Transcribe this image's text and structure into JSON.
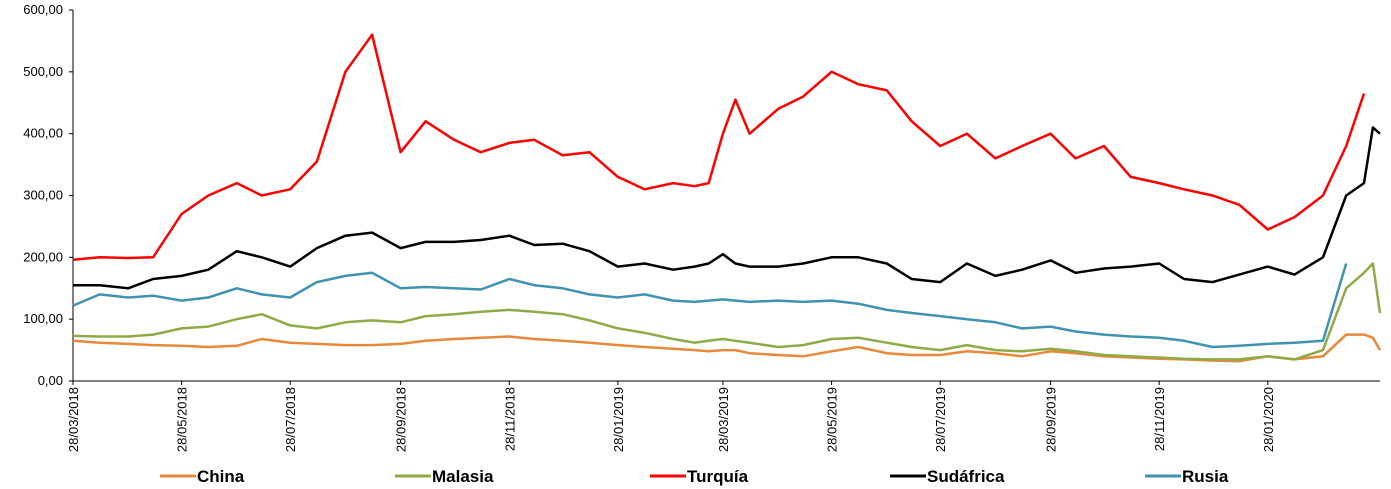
{
  "chart_data": {
    "type": "line",
    "x": [
      "28/03/2018",
      "12/04/2018",
      "28/04/2018",
      "12/05/2018",
      "28/05/2018",
      "12/06/2018",
      "28/06/2018",
      "12/07/2018",
      "28/07/2018",
      "12/08/2018",
      "28/08/2018",
      "12/09/2018",
      "28/09/2018",
      "12/10/2018",
      "28/10/2018",
      "12/11/2018",
      "28/11/2018",
      "12/12/2018",
      "28/12/2018",
      "12/01/2019",
      "28/01/2019",
      "12/02/2019",
      "28/02/2019",
      "12/03/2019",
      "20/03/2019",
      "28/03/2019",
      "04/04/2019",
      "12/04/2019",
      "28/04/2019",
      "12/05/2019",
      "28/05/2019",
      "12/06/2019",
      "28/06/2019",
      "12/07/2019",
      "28/07/2019",
      "12/08/2019",
      "28/08/2019",
      "12/09/2019",
      "28/09/2019",
      "12/10/2019",
      "28/10/2019",
      "12/11/2019",
      "28/11/2019",
      "12/12/2019",
      "28/12/2019",
      "12/01/2020",
      "28/01/2020",
      "12/02/2020",
      "28/02/2020",
      "12/03/2020",
      "22/03/2020",
      "27/03/2020",
      "31/03/2020"
    ],
    "series": [
      {
        "name": "China",
        "color": "#e8883a",
        "values": [
          65,
          62,
          60,
          58,
          57,
          55,
          57,
          68,
          62,
          60,
          58,
          58,
          60,
          65,
          68,
          70,
          72,
          68,
          65,
          62,
          58,
          55,
          52,
          50,
          48,
          50,
          50,
          45,
          42,
          40,
          48,
          55,
          45,
          42,
          42,
          48,
          45,
          40,
          48,
          45,
          40,
          38,
          36,
          35,
          33,
          32,
          40,
          35,
          40,
          75,
          75,
          70,
          50
        ]
      },
      {
        "name": "Malasia",
        "color": "#8faa46",
        "values": [
          73,
          72,
          72,
          75,
          85,
          88,
          100,
          108,
          90,
          85,
          95,
          98,
          95,
          105,
          108,
          112,
          115,
          112,
          108,
          98,
          85,
          78,
          68,
          62,
          65,
          68,
          65,
          62,
          55,
          58,
          68,
          70,
          62,
          55,
          50,
          58,
          50,
          48,
          52,
          48,
          42,
          40,
          38,
          36,
          35,
          35,
          40,
          35,
          50,
          150,
          175,
          190,
          110
        ]
      },
      {
        "name": "Turquía",
        "color": "#ff0000",
        "values": [
          196,
          200,
          199,
          200,
          270,
          300,
          320,
          300,
          310,
          355,
          500,
          560,
          370,
          420,
          390,
          370,
          385,
          390,
          365,
          370,
          330,
          310,
          320,
          315,
          320,
          400,
          455,
          400,
          440,
          460,
          500,
          480,
          470,
          420,
          380,
          400,
          360,
          380,
          400,
          360,
          380,
          330,
          320,
          310,
          300,
          285,
          245,
          265,
          300,
          380,
          465,
          null,
          null
        ]
      },
      {
        "name": "Sudáfrica",
        "color": "#000000",
        "values": [
          155,
          155,
          150,
          165,
          170,
          180,
          210,
          200,
          185,
          215,
          235,
          240,
          215,
          225,
          225,
          228,
          235,
          220,
          222,
          210,
          185,
          190,
          180,
          185,
          190,
          205,
          190,
          185,
          185,
          190,
          200,
          200,
          190,
          165,
          160,
          190,
          170,
          180,
          195,
          175,
          182,
          185,
          190,
          165,
          160,
          172,
          185,
          172,
          200,
          300,
          320,
          410,
          400
        ]
      },
      {
        "name": "Rusia",
        "color": "#3f93b0",
        "values": [
          122,
          140,
          135,
          138,
          130,
          135,
          150,
          140,
          135,
          160,
          170,
          175,
          150,
          152,
          150,
          148,
          165,
          155,
          150,
          140,
          135,
          140,
          130,
          128,
          130,
          132,
          130,
          128,
          130,
          128,
          130,
          125,
          115,
          110,
          105,
          100,
          95,
          85,
          88,
          80,
          75,
          72,
          70,
          65,
          55,
          57,
          60,
          62,
          65,
          190,
          null,
          null,
          null
        ]
      }
    ],
    "xlim": [
      "28/03/2018",
      "31/03/2020"
    ],
    "xticks": [
      "28/03/2018",
      "28/05/2018",
      "28/07/2018",
      "28/09/2018",
      "28/11/2018",
      "28/01/2019",
      "28/03/2019",
      "28/05/2019",
      "28/07/2019",
      "28/09/2019",
      "28/11/2019",
      "28/01/2020"
    ],
    "ylim": [
      0,
      600
    ],
    "yticks": [
      {
        "value": 0,
        "label": "0,00"
      },
      {
        "value": 100,
        "label": "100,00"
      },
      {
        "value": 200,
        "label": "200,00"
      },
      {
        "value": 300,
        "label": "300,00"
      },
      {
        "value": 400,
        "label": "400,00"
      },
      {
        "value": 500,
        "label": "500,00"
      },
      {
        "value": 600,
        "label": "600,00"
      }
    ],
    "legend": "bottom"
  }
}
